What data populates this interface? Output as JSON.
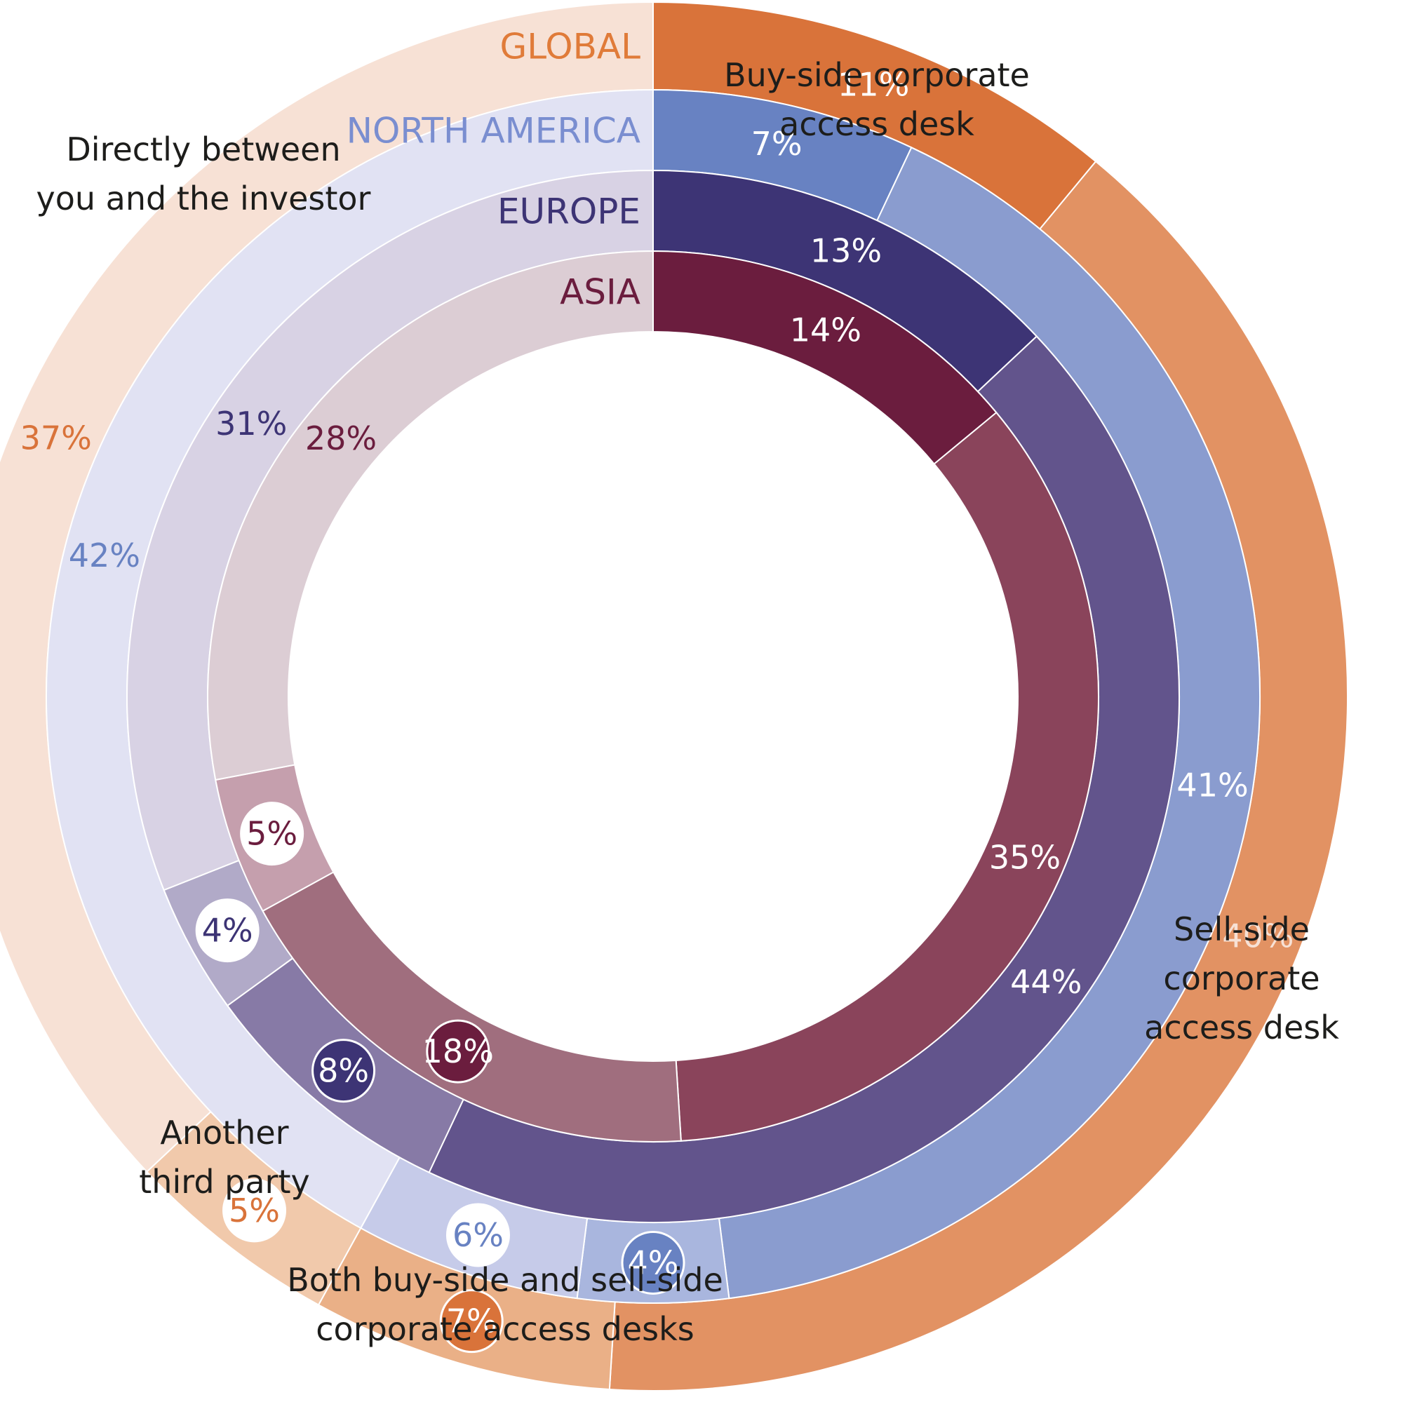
{
  "chart_data": {
    "type": "donut-multi-ring",
    "categories": [
      "Buy-side corporate access desk",
      "Sell-side corporate access desk",
      "Both buy-side and sell-side corporate access desks",
      "Another third party",
      "Directly between you and the investor"
    ],
    "category_labels": [
      "Buy-side corporate\naccess desk",
      "Sell-side\ncorporate\naccess desk",
      "Both buy-side and sell-side\ncorporate access desks",
      "Another\nthird party",
      "Directly between\nyou and the investor"
    ],
    "series": [
      {
        "name": "GLOBAL",
        "values": [
          11,
          40,
          7,
          5,
          37
        ],
        "labels": [
          "11%",
          "40%",
          "7%",
          "5%",
          "37%"
        ],
        "name_color": "#e07b39",
        "colors": [
          "#d9733a",
          "#e29263",
          "#eab087",
          "#f1c9ab",
          "#f7e1d5"
        ],
        "label_colors": [
          "#ffffff",
          "#f7e1d5",
          "#ffffff",
          "#d9733a",
          "#d9733a"
        ],
        "badges": [
          false,
          false,
          true,
          true,
          false
        ]
      },
      {
        "name": "NORTH AMERICA",
        "values": [
          7,
          41,
          4,
          6,
          42
        ],
        "labels": [
          "7%",
          "41%",
          "4%",
          "6%",
          "42%"
        ],
        "name_color": "#7a8ed0",
        "colors": [
          "#6882c2",
          "#8a9ccf",
          "#a9b6de",
          "#c6cbe9",
          "#e1e2f3"
        ],
        "label_colors": [
          "#ffffff",
          "#ffffff",
          "#ffffff",
          "#6882c2",
          "#6882c2"
        ],
        "badges": [
          false,
          false,
          true,
          true,
          false
        ]
      },
      {
        "name": "EUROPE",
        "values": [
          13,
          44,
          8,
          4,
          31
        ],
        "labels": [
          "13%",
          "44%",
          "8%",
          "4%",
          "31%"
        ],
        "name_color": "#3d3475",
        "colors": [
          "#3d3475",
          "#62548c",
          "#877aa6",
          "#b1aac8",
          "#d8d2e4"
        ],
        "label_colors": [
          "#ffffff",
          "#ffffff",
          "#ffffff",
          "#3d3475",
          "#3d3475"
        ],
        "badges": [
          false,
          false,
          true,
          true,
          false
        ]
      },
      {
        "name": "ASIA",
        "values": [
          14,
          35,
          18,
          5,
          28
        ],
        "labels": [
          "14%",
          "35%",
          "18%",
          "5%",
          "28%"
        ],
        "name_color": "#6b1d3e",
        "colors": [
          "#6b1d3e",
          "#8a445b",
          "#a06e7e",
          "#c59fad",
          "#dccdd4"
        ],
        "label_colors": [
          "#ffffff",
          "#ffffff",
          "#ffffff",
          "#6b1d3e",
          "#6b1d3e"
        ],
        "badges": [
          false,
          false,
          true,
          true,
          false
        ]
      }
    ]
  }
}
